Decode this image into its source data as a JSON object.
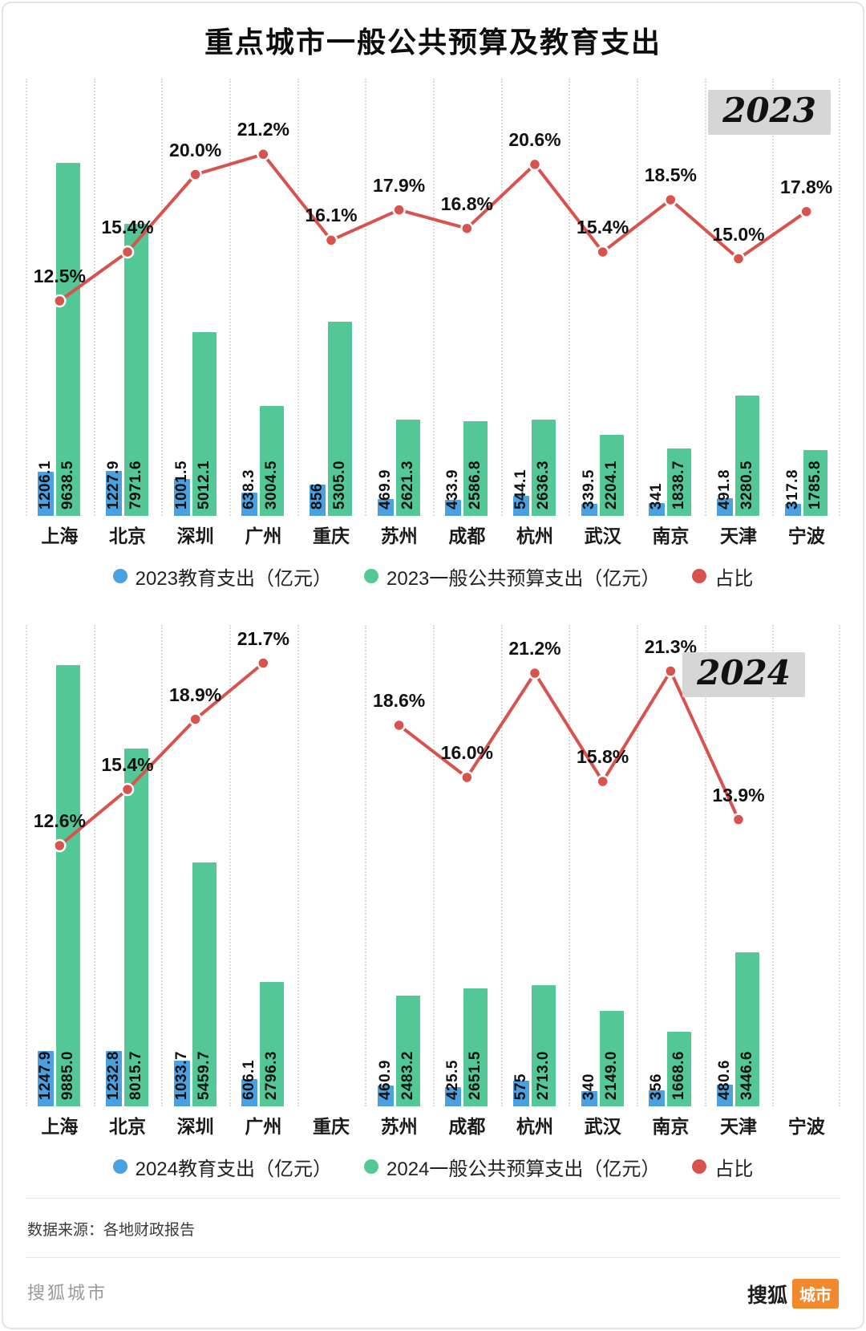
{
  "title": "重点城市一般公共预算及教育支出",
  "source_note": "数据来源：各地财政报告",
  "footer": {
    "left": "搜狐城市",
    "brand_text": "搜狐",
    "brand_badge": "城市"
  },
  "colors": {
    "blue": "#4BA0E1",
    "green": "#53C796",
    "red": "#D8534E",
    "badge_bg": "#D6D6D6",
    "brand_orange": "#F28A2D",
    "grid": "#DCDCDC"
  },
  "chart_data": [
    {
      "type": "bar+line",
      "year_label": "2023",
      "categories": [
        "上海",
        "北京",
        "深圳",
        "广州",
        "重庆",
        "苏州",
        "成都",
        "杭州",
        "武汉",
        "南京",
        "天津",
        "宁波"
      ],
      "series": [
        {
          "name": "2023教育支出（亿元）",
          "kind": "bar",
          "color_key": "blue",
          "values": [
            1206.1,
            1227.9,
            1001.5,
            638.3,
            856,
            469.9,
            433.9,
            544.1,
            339.5,
            341,
            491.8,
            317.8
          ],
          "labels": [
            "1206.1",
            "1227.9",
            "1001.5",
            "638.3",
            "856",
            "469.9",
            "433.9",
            "544.1",
            "339.5",
            "341",
            "491.8",
            "317.8"
          ]
        },
        {
          "name": "2023一般公共预算支出（亿元）",
          "kind": "bar",
          "color_key": "green",
          "values": [
            9638.5,
            7971.6,
            5012.1,
            3004.5,
            5305.0,
            2621.3,
            2586.8,
            2636.3,
            2204.1,
            1838.7,
            3280.5,
            1785.8
          ],
          "labels": [
            "9638.5",
            "7971.6",
            "5012.1",
            "3004.5",
            "5305.0",
            "2621.3",
            "2586.8",
            "2636.3",
            "2204.1",
            "1838.7",
            "3280.5",
            "1785.8"
          ]
        },
        {
          "name": "占比",
          "kind": "line",
          "color_key": "red",
          "values": [
            12.5,
            15.4,
            20.0,
            21.2,
            16.1,
            17.9,
            16.8,
            20.6,
            15.4,
            18.5,
            15.0,
            17.8
          ],
          "labels": [
            "12.5%",
            "15.4%",
            "20.0%",
            "21.2%",
            "16.1%",
            "17.9%",
            "16.8%",
            "20.6%",
            "15.4%",
            "18.5%",
            "15.0%",
            "17.8%"
          ]
        }
      ]
    },
    {
      "type": "bar+line",
      "year_label": "2024",
      "categories": [
        "上海",
        "北京",
        "深圳",
        "广州",
        "重庆",
        "苏州",
        "成都",
        "杭州",
        "武汉",
        "南京",
        "天津",
        "宁波"
      ],
      "series": [
        {
          "name": "2024教育支出（亿元）",
          "kind": "bar",
          "color_key": "blue",
          "values": [
            1247.9,
            1232.8,
            1033.7,
            606.1,
            null,
            460.9,
            425.5,
            575,
            340,
            356,
            480.6,
            null
          ],
          "labels": [
            "1247.9",
            "1232.8",
            "1033.7",
            "606.1",
            "",
            "460.9",
            "425.5",
            "575",
            "340",
            "356",
            "480.6",
            ""
          ]
        },
        {
          "name": "2024一般公共预算支出（亿元）",
          "kind": "bar",
          "color_key": "green",
          "values": [
            9885.0,
            8015.7,
            5459.7,
            2796.3,
            null,
            2483.2,
            2651.5,
            2713.0,
            2149.0,
            1668.6,
            3446.6,
            null
          ],
          "labels": [
            "9885.0",
            "8015.7",
            "5459.7",
            "2796.3",
            "",
            "2483.2",
            "2651.5",
            "2713.0",
            "2149.0",
            "1668.6",
            "3446.6",
            ""
          ]
        },
        {
          "name": "占比",
          "kind": "line",
          "color_key": "red",
          "values": [
            12.6,
            15.4,
            18.9,
            21.7,
            null,
            18.6,
            16.0,
            21.2,
            15.8,
            21.3,
            13.9,
            null
          ],
          "labels": [
            "12.6%",
            "15.4%",
            "18.9%",
            "21.7%",
            "",
            "18.6%",
            "16.0%",
            "21.2%",
            "15.8%",
            "21.3%",
            "13.9%",
            ""
          ]
        }
      ]
    }
  ]
}
